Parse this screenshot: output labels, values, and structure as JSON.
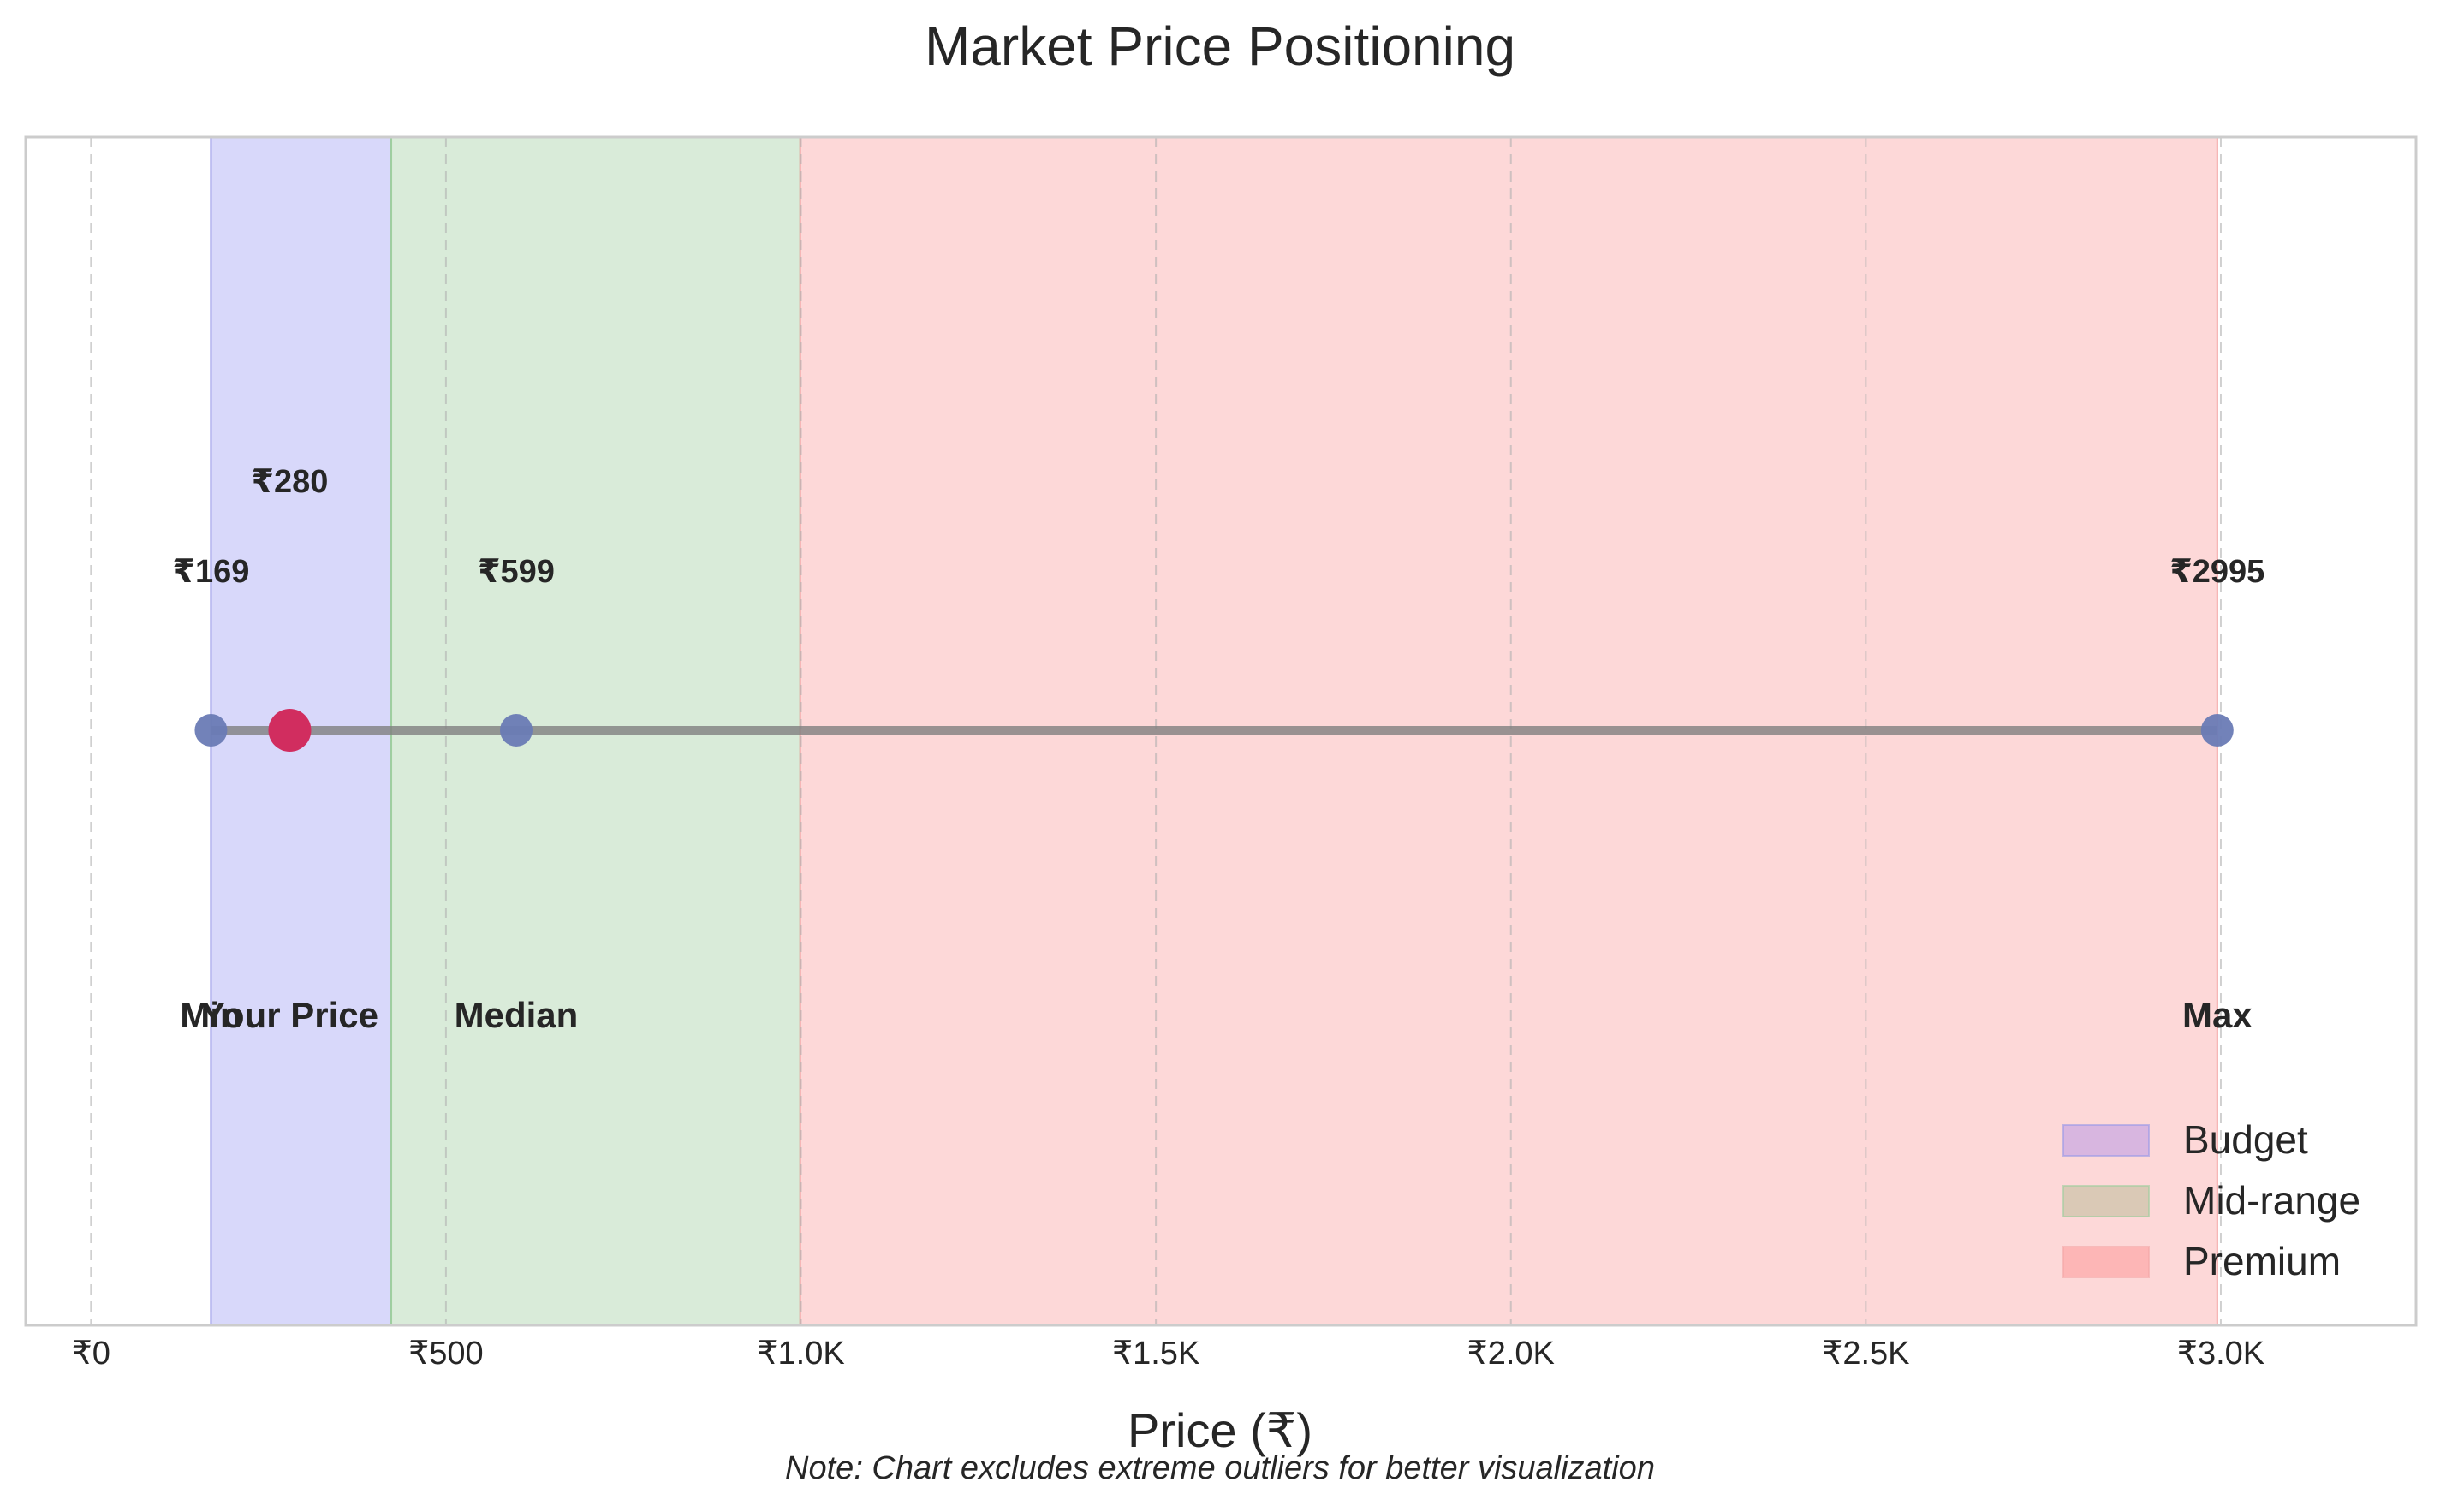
{
  "chart_data": {
    "type": "scatter",
    "title": "Market Price Positioning",
    "xlabel": "Price (₹)",
    "ylabel": "",
    "currency_symbol": "₹",
    "xlim": [
      -92,
      3275
    ],
    "xticks": [
      {
        "value": 0,
        "label": "₹0"
      },
      {
        "value": 500,
        "label": "₹500"
      },
      {
        "value": 1000,
        "label": "₹1.0K"
      },
      {
        "value": 1500,
        "label": "₹1.5K"
      },
      {
        "value": 2000,
        "label": "₹2.0K"
      },
      {
        "value": 2500,
        "label": "₹2.5K"
      },
      {
        "value": 3000,
        "label": "₹3.0K"
      }
    ],
    "grid": true,
    "range_line": {
      "from": 169,
      "to": 2995,
      "color": "#808080"
    },
    "bands": [
      {
        "name": "Budget",
        "from": 169,
        "to": 423,
        "color": "#d8d8fa",
        "legend_color": "#d8b6e0",
        "edge_color": "#9a9ae8"
      },
      {
        "name": "Mid-range",
        "from": 423,
        "to": 999,
        "color": "#d9ebd9",
        "legend_color": "#dac9b6",
        "edge_color": "#9fcf9f"
      },
      {
        "name": "Premium",
        "from": 999,
        "to": 2995,
        "color": "#fdd8d8",
        "legend_color": "#fdb6b6",
        "edge_color": "#f3a6a6"
      }
    ],
    "points": [
      {
        "name": "Min",
        "value": 169,
        "value_label": "₹169",
        "color": "#6a7bb5",
        "highlight": false,
        "label_row": "upper"
      },
      {
        "name": "Your Price",
        "value": 280,
        "value_label": "₹280",
        "color": "#d12d5f",
        "highlight": true,
        "label_row": "top"
      },
      {
        "name": "Median",
        "value": 599,
        "value_label": "₹599",
        "color": "#6a7bb5",
        "highlight": false,
        "label_row": "upper"
      },
      {
        "name": "Max",
        "value": 2995,
        "value_label": "₹2995",
        "color": "#6a7bb5",
        "highlight": false,
        "label_row": "upper"
      }
    ],
    "legend": {
      "position": "lower-right",
      "entries": [
        "Budget",
        "Mid-range",
        "Premium"
      ]
    },
    "note": "Note: Chart excludes extreme outliers for better visualization"
  }
}
